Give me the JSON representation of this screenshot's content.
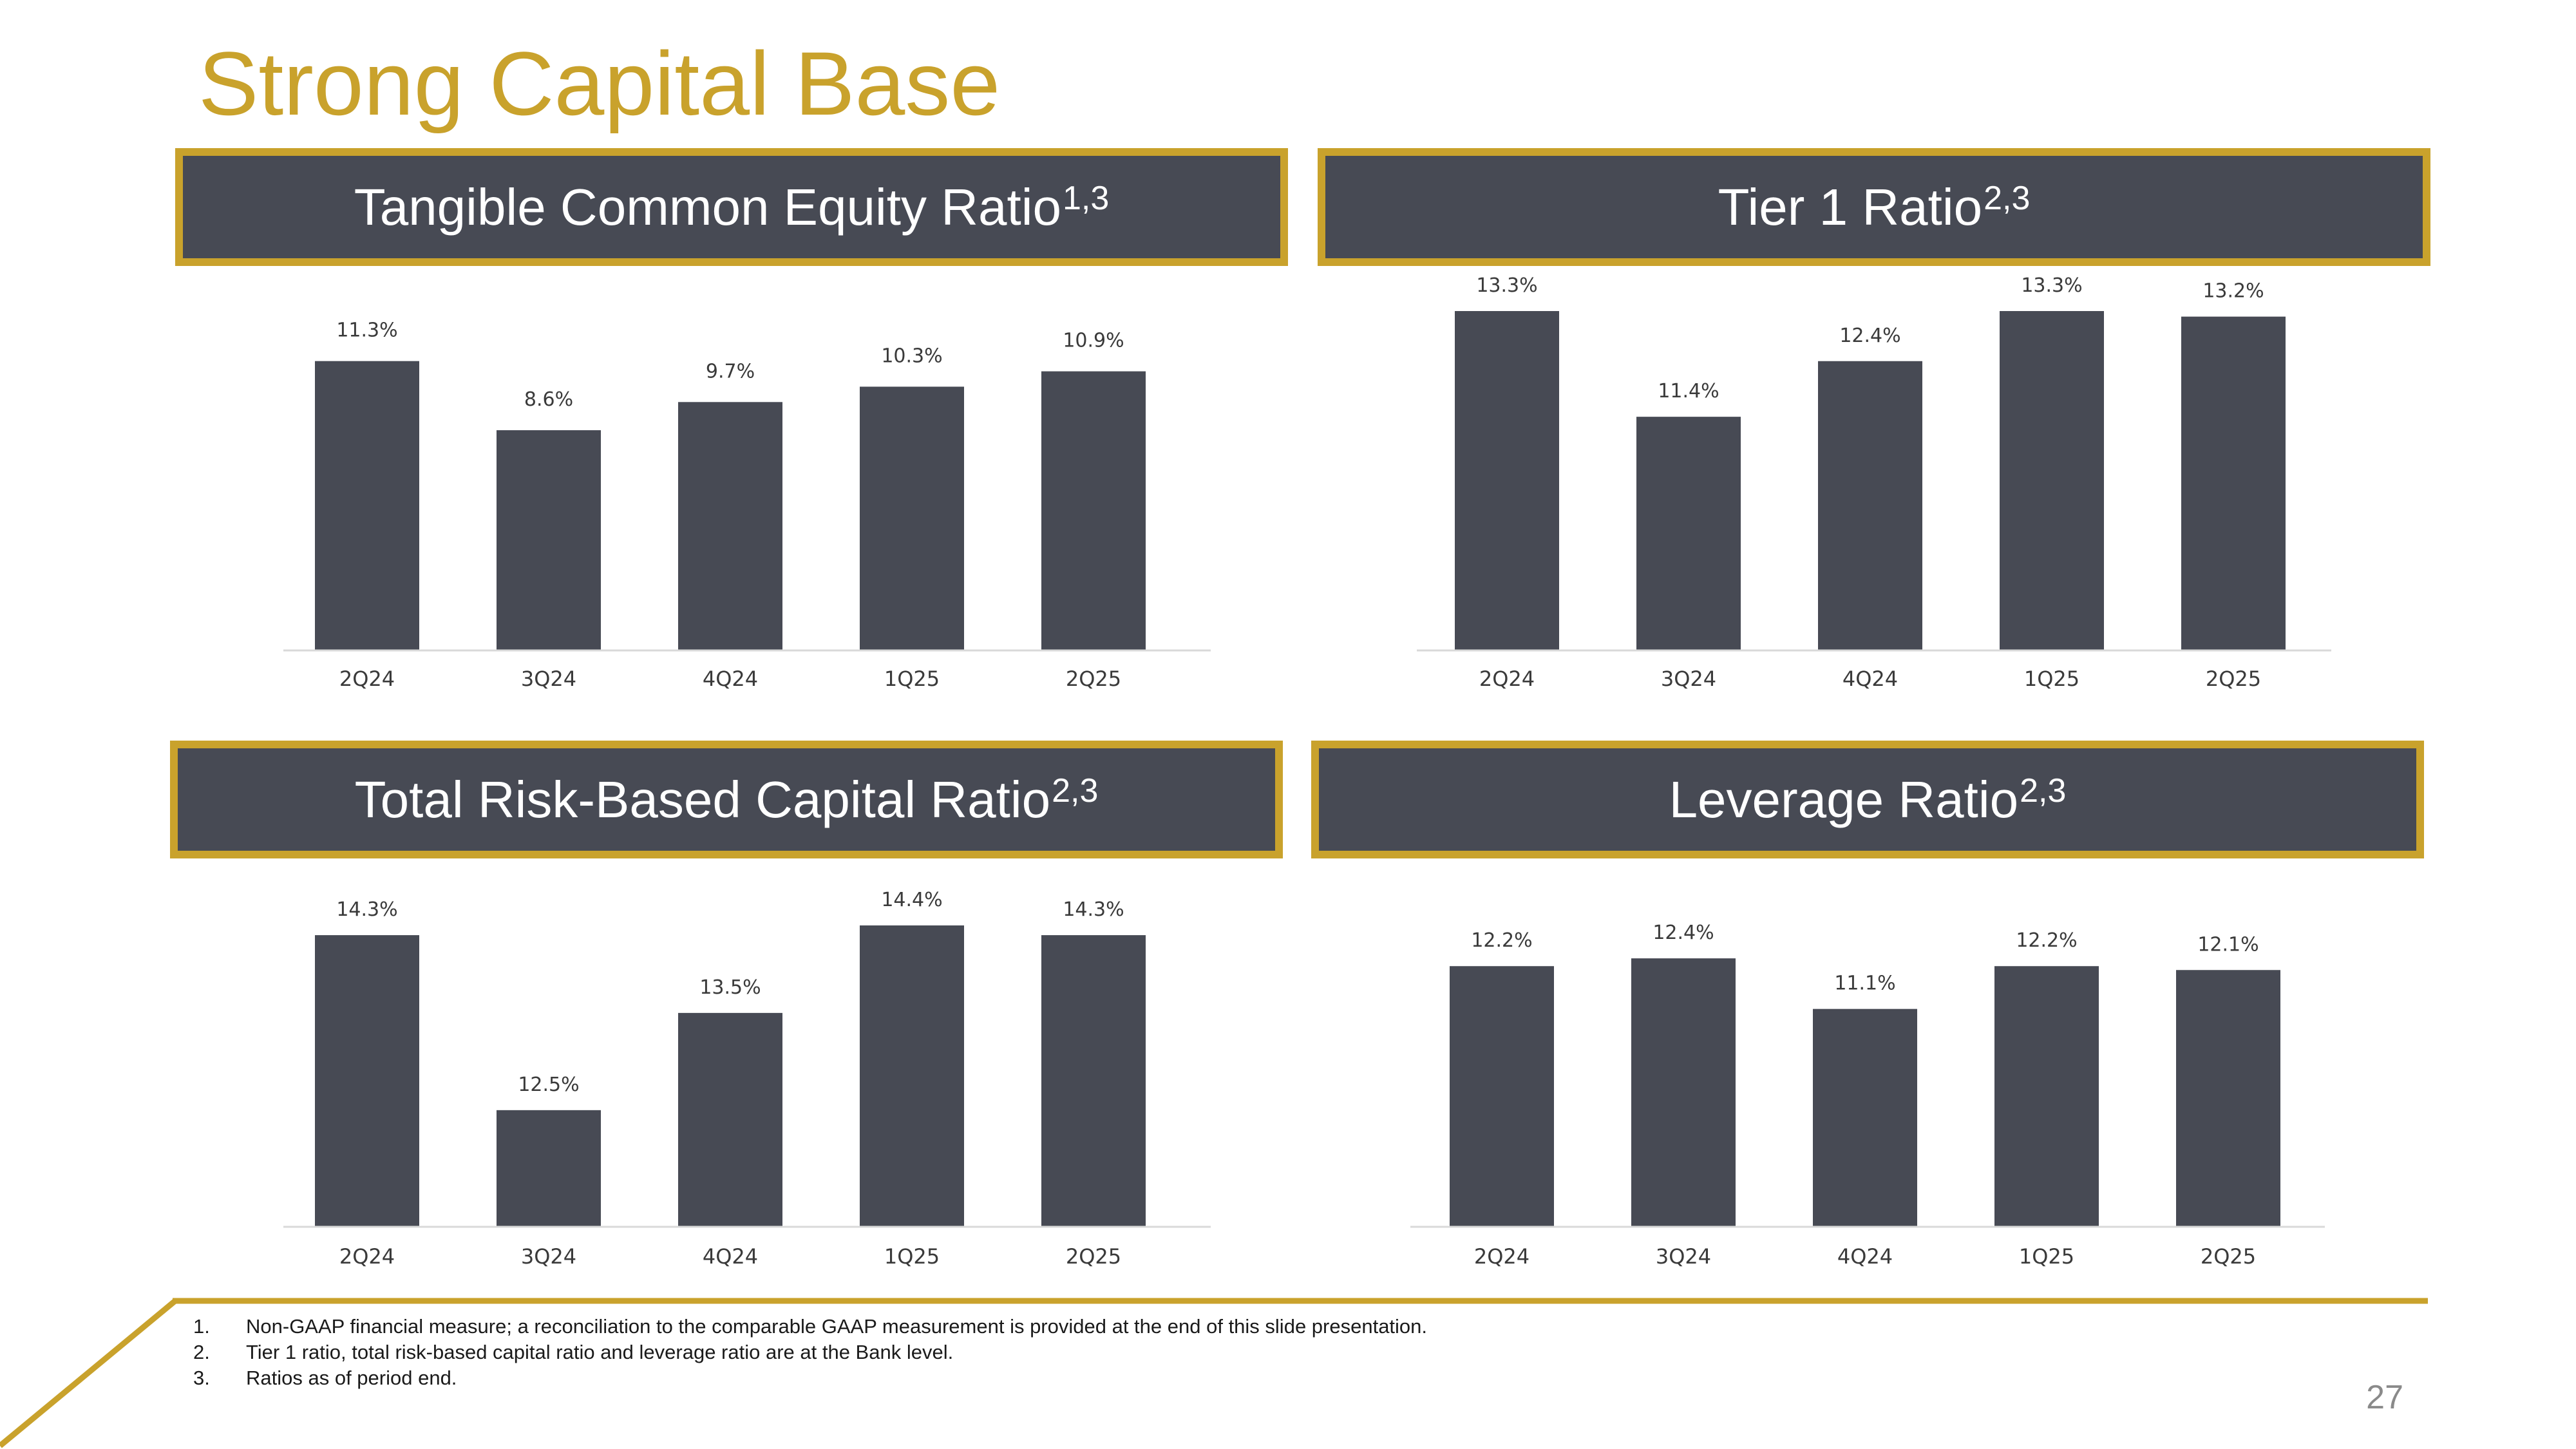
{
  "title": "Strong Capital Base",
  "colors": {
    "gold": "#c9a22c",
    "bar": "#474a54"
  },
  "panels": [
    {
      "heading": "Tangible Common Equity Ratio",
      "superscript": "1,3"
    },
    {
      "heading": "Tier 1 Ratio",
      "superscript": "2,3"
    },
    {
      "heading": "Total Risk-Based Capital Ratio",
      "superscript": "2,3"
    },
    {
      "heading": "Leverage Ratio",
      "superscript": "2,3"
    }
  ],
  "chart_data": [
    {
      "type": "bar",
      "title": "Tangible Common Equity Ratio",
      "categories": [
        "2Q24",
        "3Q24",
        "4Q24",
        "1Q25",
        "2Q25"
      ],
      "values": [
        11.3,
        8.6,
        9.7,
        10.3,
        10.9
      ],
      "labels": [
        "11.3%",
        "8.6%",
        "9.7%",
        "10.3%",
        "10.9%"
      ],
      "unit": "%",
      "ylim": [
        0,
        12.7
      ]
    },
    {
      "type": "bar",
      "title": "Tier 1 Ratio",
      "categories": [
        "2Q24",
        "3Q24",
        "4Q24",
        "1Q25",
        "2Q25"
      ],
      "values": [
        13.3,
        11.4,
        12.4,
        13.3,
        13.2
      ],
      "labels": [
        "13.3%",
        "11.4%",
        "12.4%",
        "13.3%",
        "13.2%"
      ],
      "unit": "%",
      "ylim": [
        7.2,
        13.3
      ]
    },
    {
      "type": "bar",
      "title": "Total Risk-Based Capital Ratio",
      "categories": [
        "2Q24",
        "3Q24",
        "4Q24",
        "1Q25",
        "2Q25"
      ],
      "values": [
        14.3,
        12.5,
        13.5,
        14.4,
        14.3
      ],
      "labels": [
        "14.3%",
        "12.5%",
        "13.5%",
        "14.4%",
        "14.3%"
      ],
      "unit": "%",
      "ylim": [
        11.3,
        14.4
      ]
    },
    {
      "type": "bar",
      "title": "Leverage Ratio",
      "categories": [
        "2Q24",
        "3Q24",
        "4Q24",
        "1Q25",
        "2Q25"
      ],
      "values": [
        12.2,
        12.4,
        11.1,
        12.2,
        12.1
      ],
      "labels": [
        "12.2%",
        "12.4%",
        "11.1%",
        "12.2%",
        "12.1%"
      ],
      "unit": "%",
      "ylim": [
        5.5,
        12.7
      ]
    }
  ],
  "footnotes": [
    {
      "num": "1.",
      "text": "Non-GAAP financial measure; a reconciliation to the comparable GAAP measurement is provided at the end of this slide presentation."
    },
    {
      "num": "2.",
      "text": "Tier 1 ratio, total risk-based capital ratio and leverage ratio are at the Bank level."
    },
    {
      "num": "3.",
      "text": "Ratios as of period end."
    }
  ],
  "page_number": "27"
}
